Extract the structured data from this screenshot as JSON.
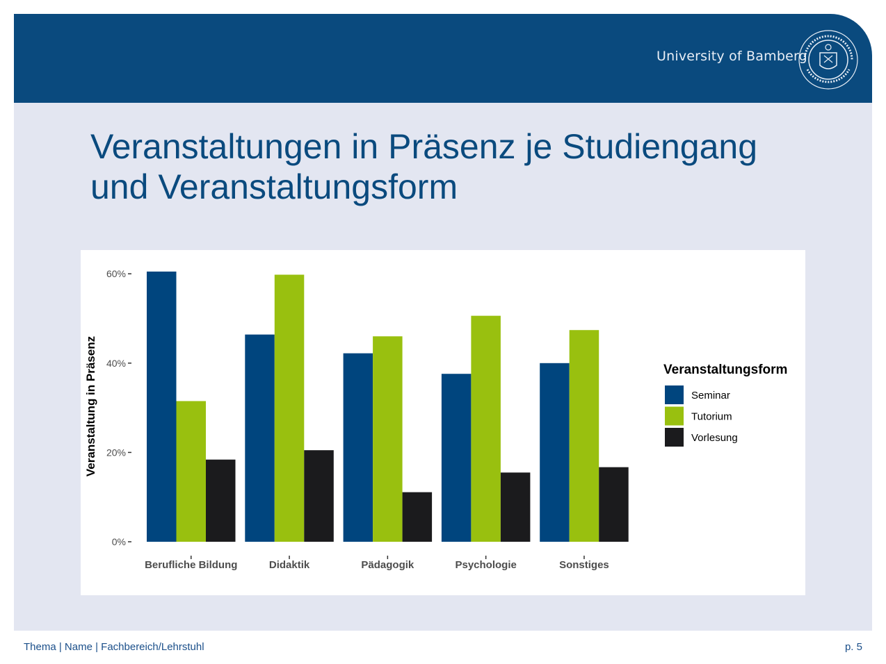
{
  "header": {
    "logo_text": "University of Bamberg",
    "seal_name": "university-seal"
  },
  "slide": {
    "title_line1": "Veranstaltungen in Präsenz je Studiengang",
    "title_line2": "und Veranstaltungsform"
  },
  "footer": {
    "left": "Thema | Name | Fachbereich/Lehrstuhl",
    "right": "p. 5"
  },
  "colors": {
    "header_blue": "#0a4a7e",
    "seminar": "#00457e",
    "tutorium": "#99c00f",
    "vorlesung": "#1b1b1d"
  },
  "chart_data": {
    "type": "bar",
    "categories": [
      "Berufliche Bildung",
      "Didaktik",
      "Pädagogik",
      "Psychologie",
      "Sonstiges"
    ],
    "series": [
      {
        "name": "Seminar",
        "values": [
          60.5,
          46.4,
          42.2,
          37.6,
          40.0
        ]
      },
      {
        "name": "Tutorium",
        "values": [
          31.5,
          59.8,
          46.0,
          50.6,
          47.4
        ]
      },
      {
        "name": "Vorlesung",
        "values": [
          18.4,
          20.5,
          11.1,
          15.5,
          16.7
        ]
      }
    ],
    "ylabel": "Veranstaltung in Präsenz",
    "yticks": [
      "0%",
      "20%",
      "40%",
      "60%"
    ],
    "ytick_values": [
      0,
      20,
      40,
      60
    ],
    "ylim": [
      0,
      60
    ],
    "legend_title": "Veranstaltungsform",
    "legend_position": "right",
    "grid": false
  }
}
